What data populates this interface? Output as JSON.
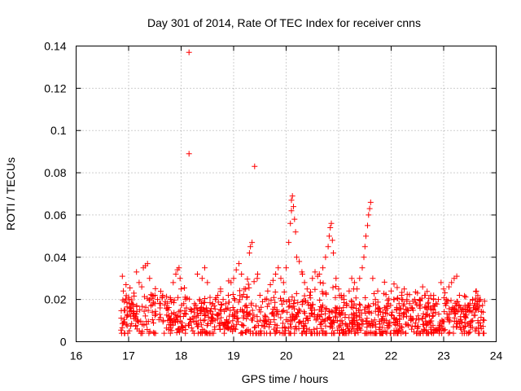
{
  "chart_data": {
    "type": "scatter",
    "title": "Day 301 of 2014, Rate Of TEC Index for receiver cnns",
    "xlabel": "GPS time / hours",
    "ylabel": "ROTI / TECUs",
    "xlim": [
      16,
      24
    ],
    "ylim": [
      0,
      0.14
    ],
    "xticks": [
      16,
      17,
      18,
      19,
      20,
      21,
      22,
      23,
      24
    ],
    "yticks": [
      0,
      0.02,
      0.04,
      0.06,
      0.08,
      0.1,
      0.12,
      0.14
    ],
    "xtick_labels": [
      "16",
      "17",
      "18",
      "19",
      "20",
      "21",
      "22",
      "23",
      "24"
    ],
    "ytick_labels": [
      "0",
      "0.02",
      "0.04",
      "0.06",
      "0.08",
      "0.1",
      "0.12",
      "0.14"
    ],
    "grid": true,
    "marker": "+",
    "color": "#ff0000",
    "series": [
      {
        "name": "ROTI",
        "points": [
          [
            16.88,
            0.031
          ],
          [
            16.9,
            0.024
          ],
          [
            16.92,
            0.019
          ],
          [
            16.95,
            0.027
          ],
          [
            17.0,
            0.021
          ],
          [
            17.05,
            0.018
          ],
          [
            17.1,
            0.023
          ],
          [
            17.15,
            0.033
          ],
          [
            17.2,
            0.028
          ],
          [
            17.25,
            0.026
          ],
          [
            17.28,
            0.035
          ],
          [
            17.32,
            0.036
          ],
          [
            17.36,
            0.037
          ],
          [
            17.4,
            0.03
          ],
          [
            17.45,
            0.022
          ],
          [
            17.5,
            0.018
          ],
          [
            17.55,
            0.02
          ],
          [
            17.6,
            0.016
          ],
          [
            17.65,
            0.022
          ],
          [
            17.7,
            0.019
          ],
          [
            17.75,
            0.015
          ],
          [
            17.8,
            0.02
          ],
          [
            17.85,
            0.028
          ],
          [
            17.9,
            0.032
          ],
          [
            17.93,
            0.034
          ],
          [
            17.96,
            0.035
          ],
          [
            17.98,
            0.03
          ],
          [
            18.0,
            0.025
          ],
          [
            18.05,
            0.018
          ],
          [
            18.1,
            0.016
          ],
          [
            18.15,
            0.137
          ],
          [
            18.15,
            0.089
          ],
          [
            18.2,
            0.015
          ],
          [
            18.25,
            0.012
          ],
          [
            18.3,
            0.016
          ],
          [
            18.35,
            0.02
          ],
          [
            18.4,
            0.03
          ],
          [
            18.45,
            0.035
          ],
          [
            18.5,
            0.028
          ],
          [
            18.55,
            0.021
          ],
          [
            18.6,
            0.018
          ],
          [
            18.65,
            0.02
          ],
          [
            18.7,
            0.022
          ],
          [
            18.75,
            0.025
          ],
          [
            18.8,
            0.02
          ],
          [
            18.85,
            0.018
          ],
          [
            18.9,
            0.022
          ],
          [
            18.95,
            0.028
          ],
          [
            19.0,
            0.03
          ],
          [
            19.05,
            0.034
          ],
          [
            19.1,
            0.037
          ],
          [
            19.15,
            0.032
          ],
          [
            19.2,
            0.025
          ],
          [
            19.25,
            0.021
          ],
          [
            19.3,
            0.042
          ],
          [
            19.32,
            0.045
          ],
          [
            19.35,
            0.047
          ],
          [
            19.4,
            0.083
          ],
          [
            19.45,
            0.03
          ],
          [
            19.5,
            0.022
          ],
          [
            19.55,
            0.019
          ],
          [
            19.6,
            0.02
          ],
          [
            19.65,
            0.024
          ],
          [
            19.7,
            0.027
          ],
          [
            19.75,
            0.029
          ],
          [
            19.8,
            0.032
          ],
          [
            19.85,
            0.035
          ],
          [
            19.9,
            0.03
          ],
          [
            19.95,
            0.028
          ],
          [
            20.0,
            0.035
          ],
          [
            20.05,
            0.047
          ],
          [
            20.08,
            0.056
          ],
          [
            20.1,
            0.062
          ],
          [
            20.1,
            0.067
          ],
          [
            20.12,
            0.069
          ],
          [
            20.14,
            0.064
          ],
          [
            20.16,
            0.058
          ],
          [
            20.18,
            0.052
          ],
          [
            20.2,
            0.04
          ],
          [
            20.25,
            0.038
          ],
          [
            20.3,
            0.033
          ],
          [
            20.35,
            0.028
          ],
          [
            20.4,
            0.025
          ],
          [
            20.45,
            0.022
          ],
          [
            20.5,
            0.03
          ],
          [
            20.55,
            0.033
          ],
          [
            20.6,
            0.031
          ],
          [
            20.65,
            0.028
          ],
          [
            20.7,
            0.035
          ],
          [
            20.75,
            0.04
          ],
          [
            20.8,
            0.045
          ],
          [
            20.82,
            0.05
          ],
          [
            20.84,
            0.054
          ],
          [
            20.86,
            0.056
          ],
          [
            20.88,
            0.048
          ],
          [
            20.9,
            0.042
          ],
          [
            20.95,
            0.03
          ],
          [
            21.0,
            0.025
          ],
          [
            21.05,
            0.022
          ],
          [
            21.1,
            0.02
          ],
          [
            21.15,
            0.018
          ],
          [
            21.2,
            0.024
          ],
          [
            21.25,
            0.03
          ],
          [
            21.3,
            0.028
          ],
          [
            21.35,
            0.025
          ],
          [
            21.4,
            0.03
          ],
          [
            21.45,
            0.035
          ],
          [
            21.48,
            0.04
          ],
          [
            21.5,
            0.045
          ],
          [
            21.52,
            0.05
          ],
          [
            21.55,
            0.055
          ],
          [
            21.57,
            0.06
          ],
          [
            21.59,
            0.063
          ],
          [
            21.61,
            0.066
          ],
          [
            21.65,
            0.03
          ],
          [
            21.7,
            0.02
          ],
          [
            21.75,
            0.016
          ],
          [
            21.8,
            0.014
          ],
          [
            21.85,
            0.012
          ],
          [
            21.9,
            0.015
          ],
          [
            21.95,
            0.018
          ],
          [
            22.0,
            0.024
          ],
          [
            22.05,
            0.02
          ],
          [
            22.1,
            0.015
          ],
          [
            22.15,
            0.018
          ],
          [
            22.2,
            0.022
          ],
          [
            22.25,
            0.025
          ],
          [
            22.3,
            0.02
          ],
          [
            22.35,
            0.018
          ],
          [
            22.4,
            0.016
          ],
          [
            22.45,
            0.02
          ],
          [
            22.5,
            0.023
          ],
          [
            22.55,
            0.02
          ],
          [
            22.6,
            0.026
          ],
          [
            22.65,
            0.022
          ],
          [
            22.7,
            0.018
          ],
          [
            22.75,
            0.016
          ],
          [
            22.8,
            0.015
          ],
          [
            22.85,
            0.018
          ],
          [
            22.9,
            0.02
          ],
          [
            22.95,
            0.028
          ],
          [
            23.0,
            0.025
          ],
          [
            23.05,
            0.02
          ],
          [
            23.1,
            0.026
          ],
          [
            23.15,
            0.028
          ],
          [
            23.2,
            0.03
          ],
          [
            23.25,
            0.031
          ],
          [
            23.3,
            0.022
          ],
          [
            23.35,
            0.015
          ],
          [
            23.4,
            0.012
          ],
          [
            23.45,
            0.015
          ],
          [
            23.5,
            0.018
          ],
          [
            23.55,
            0.02
          ],
          [
            23.6,
            0.018
          ],
          [
            23.65,
            0.016
          ],
          [
            23.7,
            0.02
          ],
          [
            23.75,
            0.014
          ]
        ],
        "background_band": {
          "x_start": 16.85,
          "x_end": 23.78,
          "typical_range": [
            0.004,
            0.02
          ],
          "typical_mean": 0.011,
          "count": 1150
        }
      }
    ]
  }
}
